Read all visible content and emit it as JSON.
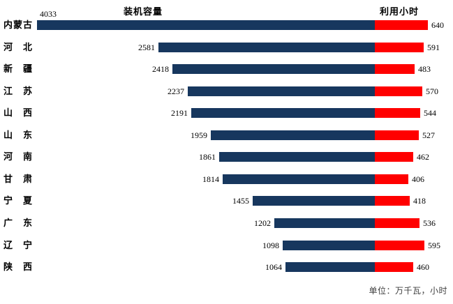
{
  "chart_data": {
    "type": "bar",
    "orientation": "horizontal-diverging",
    "title_left": "装机容量",
    "title_right": "利用小时",
    "unit_note": "单位：万千瓦，小时",
    "categories": [
      "内蒙古",
      "河北",
      "新疆",
      "江苏",
      "山西",
      "山东",
      "河南",
      "甘肃",
      "宁夏",
      "广东",
      "辽宁",
      "陕西"
    ],
    "series": [
      {
        "name": "装机容量",
        "direction": "left",
        "color": "#17375E",
        "axis_max": 4033,
        "values": [
          4033,
          2581,
          2418,
          2237,
          2191,
          1959,
          1861,
          1814,
          1455,
          1202,
          1098,
          1064
        ]
      },
      {
        "name": "利用小时",
        "direction": "right",
        "color": "#FF0000",
        "axis_max": 640,
        "values": [
          640,
          591,
          483,
          570,
          544,
          527,
          462,
          406,
          418,
          536,
          595,
          460
        ]
      }
    ],
    "legend_position": "none",
    "grid": false,
    "value_labels": "outside-end",
    "background": "#FFFFFF"
  }
}
